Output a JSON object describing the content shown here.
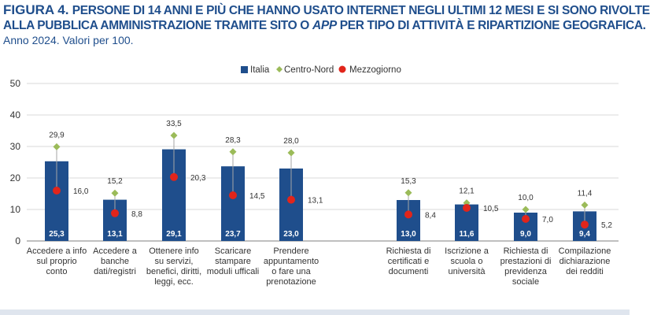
{
  "figure": {
    "label": "FIGURA 4.",
    "title_line1": "PERSONE DI 14 ANNI E PIÙ CHE HANNO USATO INTERNET NEGLI ULTIMI 12 MESI E SI SONO RIVOLTE",
    "title_line2_a": "ALLA PUBBLICA AMMINISTRAZIONE TRAMITE SITO O ",
    "title_line2_app": "APP",
    "title_line2_b": " PER TIPO DI ATTIVITÀ E RIPARTIZIONE GEOGRAFICA.",
    "subtitle": "Anno 2024. Valori per 100."
  },
  "colors": {
    "title": "#1f4e8c",
    "italia": "#1f4e8c",
    "centro_nord": "#9bbb59",
    "mezzogiorno": "#e1251b",
    "whisker": "#a6a6a6",
    "grid": "#d9d9d9"
  },
  "chart_data": {
    "type": "bar",
    "categories": [
      [
        "Accedere a info",
        "sul proprio",
        "conto"
      ],
      [
        "Accedere a",
        "banche",
        "dati/registri"
      ],
      [
        "Ottenere info",
        "su servizi,",
        "benefici, diritti,",
        "leggi,  ecc."
      ],
      [
        "Scaricare",
        "stampare",
        "moduli ufficali"
      ],
      [
        "Prendere",
        "appuntamento",
        "o fare una",
        "prenotazione"
      ],
      [
        "Richiesta di",
        "certificati e",
        "documenti"
      ],
      [
        "Iscrizione a",
        "scuola o",
        "università"
      ],
      [
        "Richiesta di",
        "prestazioni di",
        "previdenza",
        "sociale"
      ],
      [
        "Compilazione",
        "dichiarazione",
        "dei redditi"
      ]
    ],
    "series": [
      {
        "name": "Italia",
        "kind": "bar",
        "values": [
          25.3,
          13.1,
          29.1,
          23.7,
          23.0,
          13.0,
          11.6,
          9.0,
          9.4
        ],
        "labels": [
          "25,3",
          "13,1",
          "29,1",
          "23,7",
          "23,0",
          "13,0",
          "11,6",
          "9,0",
          "9,4"
        ]
      },
      {
        "name": "Centro-Nord",
        "kind": "marker-diamond",
        "values": [
          29.9,
          15.2,
          33.5,
          28.3,
          28.0,
          15.3,
          12.1,
          10.0,
          11.4
        ],
        "labels": [
          "29,9",
          "15,2",
          "33,5",
          "28,3",
          "28,0",
          "15,3",
          "12,1",
          "10,0",
          "11,4"
        ]
      },
      {
        "name": "Mezzogiorno",
        "kind": "marker-dot",
        "values": [
          16.0,
          8.8,
          20.3,
          14.5,
          13.1,
          8.4,
          10.5,
          7.0,
          5.2
        ],
        "labels": [
          "16,0",
          "8,8",
          "20,3",
          "14,5",
          "13,1",
          "8,4",
          "10,5",
          "7,0",
          "5,2"
        ]
      }
    ],
    "ylim": [
      0,
      50
    ],
    "yticks": [
      "0",
      "10",
      "20",
      "30",
      "40",
      "50"
    ],
    "legend_position": "top-center",
    "grid": true
  }
}
